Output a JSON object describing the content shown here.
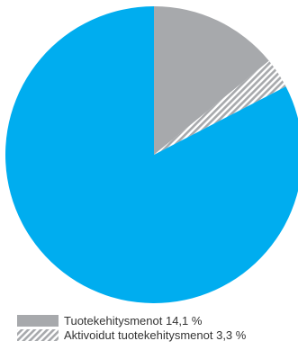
{
  "chart_data": {
    "type": "pie",
    "title": "",
    "slices": [
      {
        "label": "Tuotekehitysmenot 14,1 %",
        "value": 14.1,
        "color": "#a7a9ac",
        "pattern": "solid"
      },
      {
        "label": "Aktivoidut tuotekehitysmenot 3,3 %",
        "value": 3.3,
        "color": "#a7a9ac",
        "pattern": "diagonal-hatch"
      },
      {
        "label": "",
        "value": 82.6,
        "color": "#00adef",
        "pattern": "solid"
      }
    ],
    "start_angle": "12 o'clock",
    "direction": "clockwise",
    "legend": {
      "placement": "bottom-left",
      "items": [
        {
          "label": "Tuotekehitysmenot 14,1 %",
          "color": "#a7a9ac",
          "pattern": "solid"
        },
        {
          "label": "Aktivoidut tuotekehitysmenot 3,3 %",
          "color": "#a7a9ac",
          "pattern": "diagonal-hatch"
        }
      ]
    }
  }
}
